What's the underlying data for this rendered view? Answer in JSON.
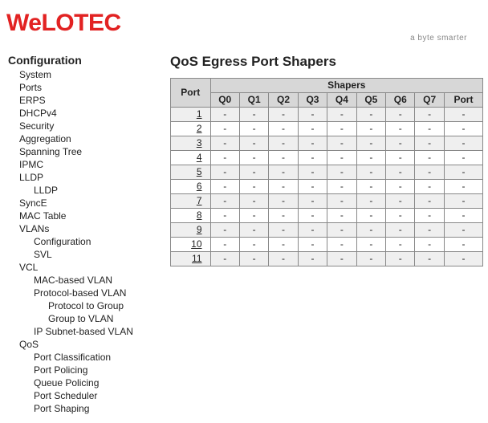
{
  "logo": {
    "brand": "WeLOTEC",
    "tagline": "a byte smarter"
  },
  "sidebar": {
    "title": "Configuration",
    "items": [
      {
        "label": "System",
        "level": 1
      },
      {
        "label": "Ports",
        "level": 1
      },
      {
        "label": "ERPS",
        "level": 1
      },
      {
        "label": "DHCPv4",
        "level": 1
      },
      {
        "label": "Security",
        "level": 1
      },
      {
        "label": "Aggregation",
        "level": 1
      },
      {
        "label": "Spanning Tree",
        "level": 1
      },
      {
        "label": "IPMC",
        "level": 1
      },
      {
        "label": "LLDP",
        "level": 1
      },
      {
        "label": "LLDP",
        "level": 2
      },
      {
        "label": "SyncE",
        "level": 1
      },
      {
        "label": "MAC Table",
        "level": 1
      },
      {
        "label": "VLANs",
        "level": 1
      },
      {
        "label": "Configuration",
        "level": 2
      },
      {
        "label": "SVL",
        "level": 2
      },
      {
        "label": "VCL",
        "level": 1
      },
      {
        "label": "MAC-based VLAN",
        "level": 2
      },
      {
        "label": "Protocol-based VLAN",
        "level": 2
      },
      {
        "label": "Protocol to Group",
        "level": 3
      },
      {
        "label": "Group to VLAN",
        "level": 3
      },
      {
        "label": "IP Subnet-based VLAN",
        "level": 2
      },
      {
        "label": "QoS",
        "level": 1
      },
      {
        "label": "Port Classification",
        "level": 2
      },
      {
        "label": "Port Policing",
        "level": 2
      },
      {
        "label": "Queue Policing",
        "level": 2
      },
      {
        "label": "Port Scheduler",
        "level": 2
      },
      {
        "label": "Port Shaping",
        "level": 2
      }
    ]
  },
  "page": {
    "title": "QoS Egress Port Shapers",
    "table": {
      "port_header": "Port",
      "shapers_header": "Shapers",
      "columns": [
        "Q0",
        "Q1",
        "Q2",
        "Q3",
        "Q4",
        "Q5",
        "Q6",
        "Q7",
        "Port"
      ],
      "ports": [
        "1",
        "2",
        "3",
        "4",
        "5",
        "6",
        "7",
        "8",
        "9",
        "10",
        "11"
      ],
      "cell_value": "-",
      "header_bg": "#d7d7d7",
      "row_odd_bg": "#efefef",
      "row_even_bg": "#ffffff",
      "border_color": "#888888"
    }
  }
}
